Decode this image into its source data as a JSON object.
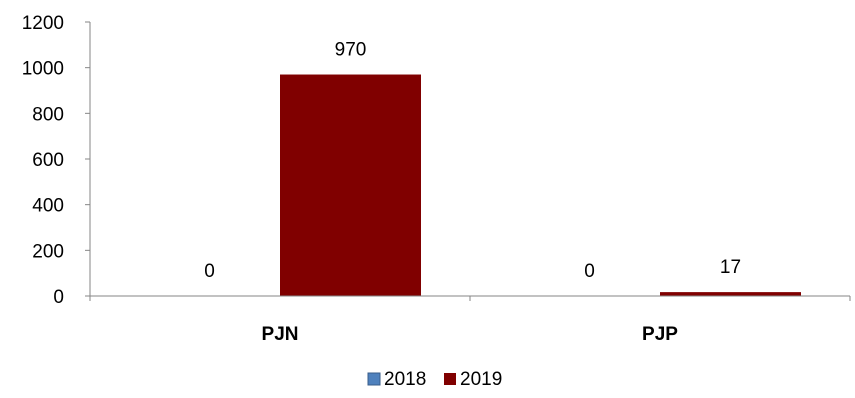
{
  "chart_data": {
    "type": "bar",
    "categories": [
      "PJN",
      "PJP"
    ],
    "series": [
      {
        "name": "2018",
        "values": [
          0,
          0
        ],
        "color": "#4F81BD"
      },
      {
        "name": "2019",
        "values": [
          970,
          17
        ],
        "color": "#800000"
      }
    ],
    "data_labels": [
      [
        "0",
        "0"
      ],
      [
        "970",
        "17"
      ]
    ],
    "y_ticks": [
      "0",
      "200",
      "400",
      "600",
      "800",
      "1000",
      "1200"
    ],
    "ylim": [
      0,
      1200
    ],
    "grid": false,
    "legend_position": "bottom"
  }
}
